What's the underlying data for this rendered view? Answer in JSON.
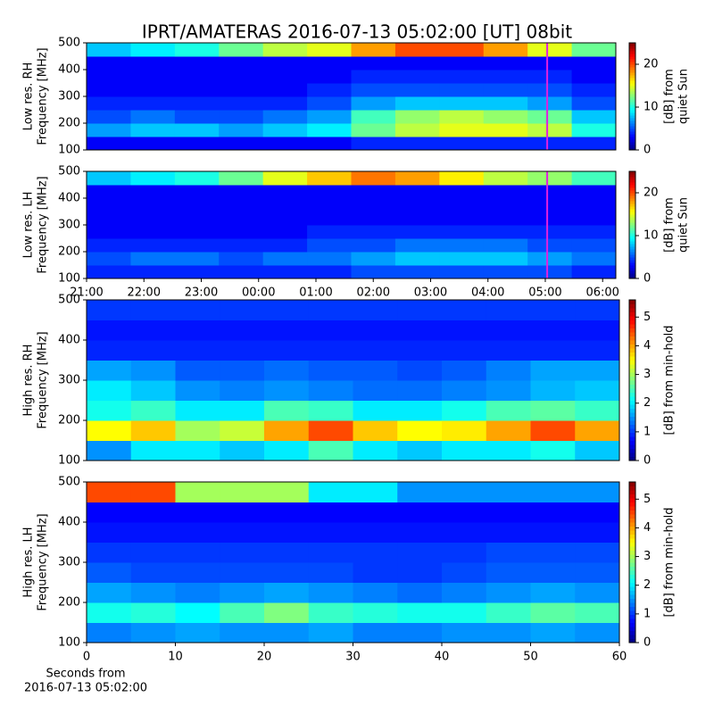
{
  "title": "IPRT/AMATERAS 2016-07-13 05:02:00 [UT]   08bit",
  "chart_data": [
    {
      "type": "heatmap",
      "colormap": "jet",
      "ylabel": [
        "Low res. RH",
        "Frequency [MHz]"
      ],
      "ylim": [
        100,
        500
      ],
      "yticks": [
        100,
        200,
        300,
        400,
        500
      ],
      "xlim": [
        21,
        30.23
      ],
      "marker_x": 29.033,
      "marker_color": "#e020e0",
      "clim": [
        0,
        25
      ],
      "cticks": [
        0,
        10,
        20
      ],
      "clabel": [
        "[dB] from",
        "quiet Sun"
      ],
      "values": [
        [
          3,
          3,
          3,
          3,
          3,
          3,
          4,
          4,
          4,
          4,
          4,
          4
        ],
        [
          7,
          8,
          8,
          7,
          8,
          9,
          12,
          14,
          15,
          15,
          14,
          10
        ],
        [
          5,
          6,
          5,
          5,
          6,
          7,
          11,
          13,
          14,
          13,
          12,
          8
        ],
        [
          4,
          4,
          4,
          4,
          4,
          5,
          7,
          8,
          8,
          8,
          7,
          5
        ],
        [
          3,
          3,
          3,
          3,
          3,
          4,
          5,
          5,
          5,
          5,
          5,
          4
        ],
        [
          3,
          3,
          3,
          3,
          3,
          3,
          4,
          4,
          4,
          4,
          4,
          3
        ],
        [
          3,
          3,
          3,
          3,
          3,
          3,
          3,
          3,
          3,
          3,
          3,
          3
        ],
        [
          8,
          9,
          10,
          12,
          14,
          15,
          18,
          20,
          20,
          18,
          15,
          12
        ]
      ]
    },
    {
      "type": "heatmap",
      "colormap": "jet",
      "ylabel": [
        "Low res. LH",
        "Frequency [MHz]"
      ],
      "ylim": [
        100,
        500
      ],
      "yticks": [
        100,
        200,
        300,
        400,
        500
      ],
      "xlim": [
        21,
        30.23
      ],
      "xticks": [
        {
          "value": 21,
          "label": "21:00"
        },
        {
          "value": 22,
          "label": "22:00"
        },
        {
          "value": 23,
          "label": "23:00"
        },
        {
          "value": 24,
          "label": "00:00"
        },
        {
          "value": 25,
          "label": "01:00"
        },
        {
          "value": 26,
          "label": "02:00"
        },
        {
          "value": 27,
          "label": "03:00"
        },
        {
          "value": 28,
          "label": "04:00"
        },
        {
          "value": 29,
          "label": "05:00"
        },
        {
          "value": 30,
          "label": "06:00"
        }
      ],
      "marker_x": 29.033,
      "marker_color": "#e020e0",
      "clim": [
        0,
        25
      ],
      "cticks": [
        0,
        10,
        20
      ],
      "clabel": [
        "[dB] from",
        "quiet Sun"
      ],
      "values": [
        [
          4,
          4,
          4,
          4,
          4,
          4,
          5,
          5,
          5,
          5,
          5,
          4
        ],
        [
          5,
          6,
          6,
          5,
          6,
          6,
          7,
          8,
          8,
          8,
          7,
          6
        ],
        [
          4,
          4,
          4,
          4,
          4,
          5,
          5,
          6,
          6,
          6,
          5,
          5
        ],
        [
          3,
          3,
          3,
          3,
          3,
          4,
          4,
          4,
          4,
          4,
          4,
          4
        ],
        [
          3,
          3,
          3,
          3,
          3,
          3,
          3,
          3,
          3,
          3,
          3,
          3
        ],
        [
          3,
          3,
          3,
          3,
          3,
          3,
          3,
          3,
          3,
          3,
          3,
          3
        ],
        [
          3,
          3,
          3,
          3,
          3,
          3,
          3,
          3,
          3,
          3,
          3,
          3
        ],
        [
          8,
          9,
          10,
          12,
          15,
          17,
          19,
          18,
          16,
          14,
          13,
          11
        ]
      ]
    },
    {
      "type": "heatmap",
      "colormap": "jet",
      "ylabel": [
        "High res. RH",
        "Frequency [MHz]"
      ],
      "ylim": [
        100,
        500
      ],
      "yticks": [
        100,
        200,
        300,
        400,
        500
      ],
      "xlim": [
        0,
        60
      ],
      "clim": [
        0,
        5.6
      ],
      "cticks": [
        0,
        1,
        2,
        3,
        4,
        5
      ],
      "clabel": [
        "[dB] from min-hold"
      ],
      "values": [
        [
          1.5,
          2,
          2,
          1.8,
          2,
          2.5,
          2,
          1.8,
          2,
          2,
          2.2,
          1.8
        ],
        [
          3.5,
          3.8,
          3,
          3.2,
          4,
          4.5,
          3.8,
          3.5,
          3.6,
          4,
          4.5,
          4
        ],
        [
          2.2,
          2.4,
          2,
          2,
          2.5,
          2.4,
          2,
          2,
          2.2,
          2.5,
          2.6,
          2.4
        ],
        [
          2,
          1.8,
          1.5,
          1.4,
          1.5,
          1.4,
          1.3,
          1.3,
          1.4,
          1.5,
          1.7,
          1.8
        ],
        [
          1.6,
          1.5,
          1.2,
          1.2,
          1.3,
          1.2,
          1.2,
          1.1,
          1.2,
          1.4,
          1.6,
          1.6
        ],
        [
          0.9,
          0.9,
          0.9,
          0.9,
          0.9,
          0.9,
          0.9,
          0.9,
          0.9,
          0.9,
          0.9,
          0.9
        ],
        [
          0.8,
          0.8,
          0.8,
          0.8,
          0.8,
          0.8,
          0.8,
          0.8,
          0.8,
          0.8,
          0.8,
          0.8
        ],
        [
          1,
          1,
          1,
          1,
          1,
          1,
          1,
          1,
          1,
          1,
          1,
          1
        ]
      ]
    },
    {
      "type": "heatmap",
      "colormap": "jet",
      "ylabel": [
        "High res. LH",
        "Frequency [MHz]"
      ],
      "xlabel": [
        "Seconds from",
        "2016-07-13 05:02:00"
      ],
      "ylim": [
        100,
        500
      ],
      "yticks": [
        100,
        200,
        300,
        400,
        500
      ],
      "xlim": [
        0,
        60
      ],
      "xticks": [
        0,
        10,
        20,
        30,
        40,
        50,
        60
      ],
      "clim": [
        0,
        5.6
      ],
      "cticks": [
        0,
        1,
        2,
        3,
        4,
        5
      ],
      "clabel": [
        "[dB] from min-hold"
      ],
      "values": [
        [
          1.4,
          1.5,
          1.6,
          1.5,
          1.5,
          1.6,
          1.4,
          1.4,
          1.5,
          1.5,
          1.6,
          1.5
        ],
        [
          2.2,
          2.3,
          2.1,
          2.5,
          2.8,
          2.4,
          2.3,
          2.2,
          2.2,
          2.4,
          2.6,
          2.5
        ],
        [
          1.6,
          1.5,
          1.4,
          1.5,
          1.6,
          1.5,
          1.4,
          1.3,
          1.4,
          1.5,
          1.6,
          1.5
        ],
        [
          1.2,
          1.1,
          1.1,
          1.1,
          1.1,
          1.1,
          1.0,
          1.0,
          1.1,
          1.2,
          1.2,
          1.2
        ],
        [
          1.0,
          1.0,
          1.0,
          1.0,
          1.0,
          1.0,
          1.0,
          1.0,
          1.0,
          1.1,
          1.1,
          1.1
        ],
        [
          0.8,
          0.8,
          0.8,
          0.8,
          0.8,
          0.8,
          0.8,
          0.8,
          0.8,
          0.8,
          0.8,
          0.8
        ],
        [
          0.7,
          0.7,
          0.7,
          0.7,
          0.7,
          0.7,
          0.7,
          0.7,
          0.7,
          0.7,
          0.7,
          0.7
        ],
        [
          4.5,
          4.5,
          3,
          3,
          3,
          2,
          2,
          1.5,
          1.5,
          1.5,
          1.5,
          1.5
        ]
      ]
    }
  ]
}
